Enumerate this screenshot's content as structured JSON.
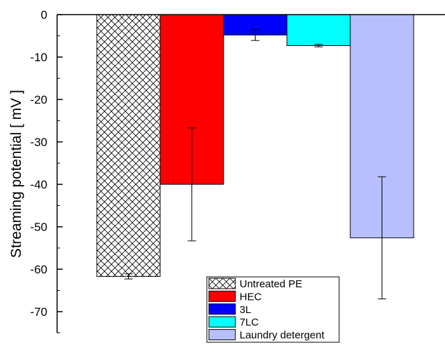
{
  "chart_data": {
    "type": "bar",
    "title": "",
    "xlabel": "",
    "ylabel": "Streaming potential [ mV ]",
    "ylim": [
      -75,
      0
    ],
    "yticks": [
      0,
      -10,
      -20,
      -30,
      -40,
      -50,
      -60,
      -70
    ],
    "grid": false,
    "legend_position": "bottom-right",
    "categories": [
      "Untreated PE",
      "HEC",
      "3L",
      "7LC",
      "Laundry detergent"
    ],
    "series": [
      {
        "name": "Untreated PE",
        "value": -61.7,
        "error": 0.6,
        "fill": "#ffffff",
        "pattern": "crosshatch"
      },
      {
        "name": "HEC",
        "value": -40.0,
        "error": 13.3,
        "fill": "#ff0000",
        "pattern": "solid"
      },
      {
        "name": "3L",
        "value": -4.8,
        "error": 1.3,
        "fill": "#0000ff",
        "pattern": "solid"
      },
      {
        "name": "7LC",
        "value": -7.3,
        "error": 0.3,
        "fill": "#00ffff",
        "pattern": "solid"
      },
      {
        "name": "Laundry detergent",
        "value": -52.6,
        "error": 14.4,
        "fill": "#b8bfff",
        "pattern": "solid"
      }
    ]
  }
}
